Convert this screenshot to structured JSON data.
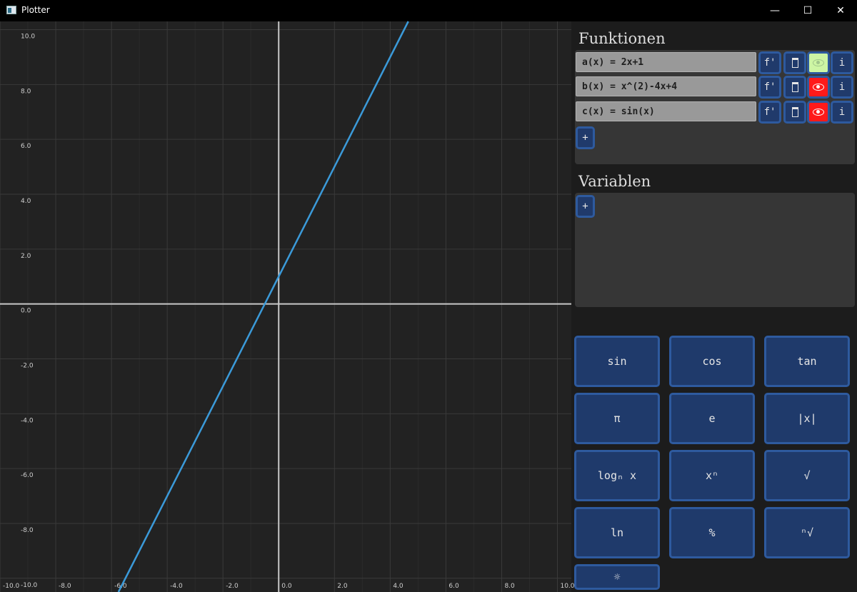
{
  "window": {
    "title": "Plotter",
    "controls": {
      "minimize": "—",
      "maximize": "☐",
      "close": "✕"
    }
  },
  "functions_panel": {
    "title": "Funktionen",
    "add_label": "+",
    "items": [
      {
        "expr": "a(x) = 2x+1",
        "derivative_label": "f'",
        "info_label": "i",
        "visible": true,
        "eye_color": "#cdf5a4"
      },
      {
        "expr": "b(x) = x^(2)-4x+4",
        "derivative_label": "f'",
        "info_label": "i",
        "visible": false,
        "eye_color": "#ff1a1a"
      },
      {
        "expr": "c(x) = sin(x)",
        "derivative_label": "f'",
        "info_label": "i",
        "visible": false,
        "eye_color": "#ff1a1a"
      }
    ]
  },
  "variables_panel": {
    "title": "Variablen",
    "add_label": "+"
  },
  "keypad": {
    "keys": [
      {
        "id": "sin",
        "label": "sin"
      },
      {
        "id": "cos",
        "label": "cos"
      },
      {
        "id": "tan",
        "label": "tan"
      },
      {
        "id": "pi",
        "label": "π"
      },
      {
        "id": "e",
        "label": "e"
      },
      {
        "id": "abs",
        "label": "|x|"
      },
      {
        "id": "log",
        "label": "logₙ x"
      },
      {
        "id": "pow",
        "label": "xⁿ"
      },
      {
        "id": "sqrt",
        "label": "√"
      },
      {
        "id": "ln",
        "label": "ln"
      },
      {
        "id": "mod",
        "label": "%"
      },
      {
        "id": "nroot",
        "label": "ⁿ√"
      },
      {
        "id": "settings",
        "label": "☼"
      }
    ]
  },
  "chart_data": {
    "type": "line",
    "xlim": [
      -10,
      10.5
    ],
    "ylim": [
      -10.5,
      10.3
    ],
    "x_ticks": [
      -10,
      -8,
      -6,
      -4,
      -2,
      0,
      2,
      4,
      6,
      8,
      10
    ],
    "y_ticks": [
      -10,
      -8,
      -6,
      -4,
      -2,
      0,
      2,
      4,
      6,
      8,
      10
    ],
    "x_tick_labels": [
      "-10.0",
      "-8.0",
      "-6.0",
      "-4.0",
      "-2.0",
      "0.0",
      "2.0",
      "4.0",
      "6.0",
      "8.0",
      "10.0"
    ],
    "y_tick_labels": [
      "-10.0",
      "-8.0",
      "-6.0",
      "-4.0",
      "-2.0",
      "0.0",
      "2.0",
      "4.0",
      "6.0",
      "8.0",
      "10.0"
    ],
    "grid": true,
    "series": [
      {
        "x": [
          -5.75,
          4.65
        ],
        "y": [
          -10.5,
          10.3
        ],
        "color": "#3b9ad9"
      }
    ]
  }
}
